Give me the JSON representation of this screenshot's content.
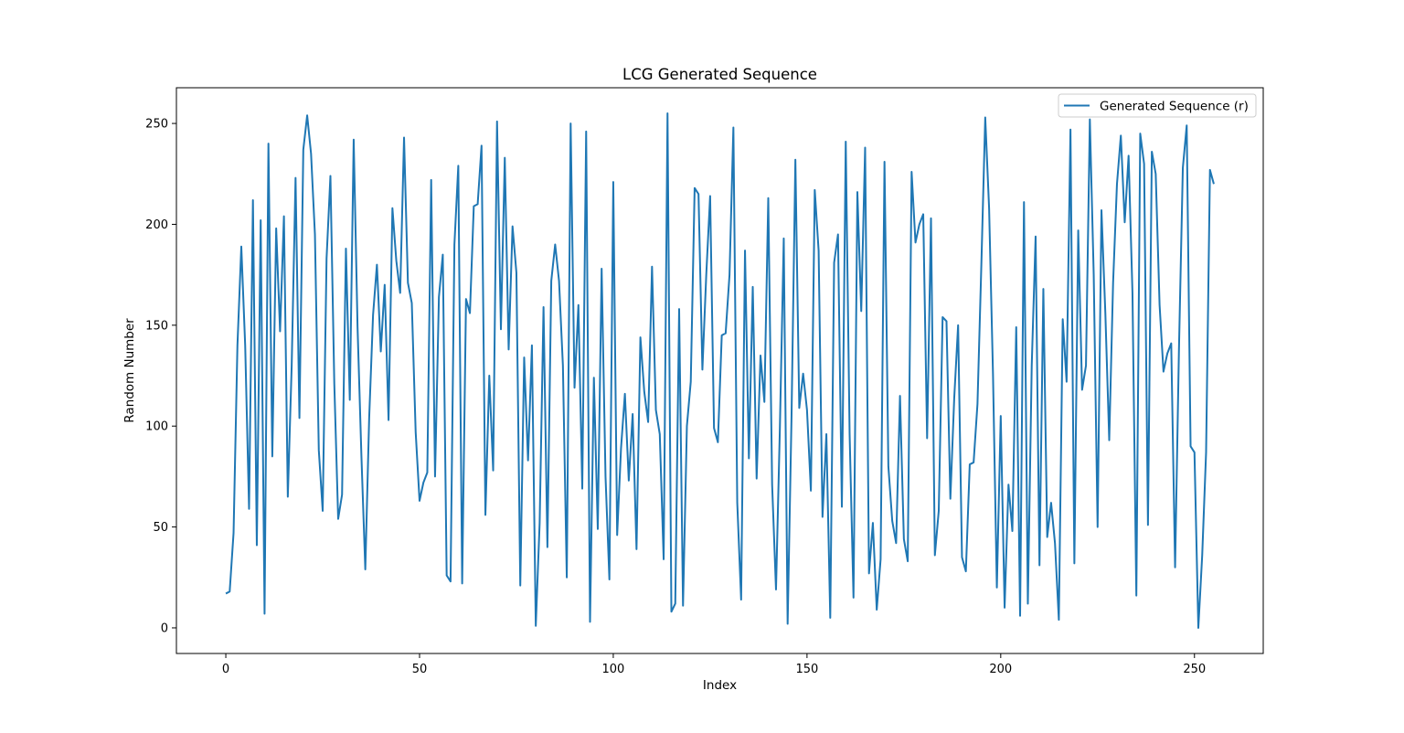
{
  "chart_data": {
    "type": "line",
    "title": "LCG Generated Sequence",
    "xlabel": "Index",
    "ylabel": "Random Number",
    "xlim": [
      -12.75,
      267.75
    ],
    "ylim": [
      -12.7,
      267.7
    ],
    "xticks": [
      0,
      50,
      100,
      150,
      200,
      250
    ],
    "yticks": [
      0,
      50,
      100,
      150,
      200,
      250
    ],
    "grid": false,
    "legend_position": "top-right",
    "line_color": "#1f77b4",
    "series": [
      {
        "name": "Generated Sequence (r)",
        "x_start": 0,
        "x_step": 1,
        "values": [
          17,
          18,
          47,
          140,
          189,
          140,
          59,
          212,
          41,
          202,
          7,
          240,
          85,
          198,
          147,
          204,
          65,
          130,
          223,
          104,
          237,
          254,
          235,
          195,
          88,
          58,
          183,
          224,
          121,
          54,
          66,
          188,
          113,
          242,
          149,
          85,
          29,
          104,
          155,
          180,
          137,
          170,
          103,
          208,
          182,
          166,
          243,
          171,
          161,
          97,
          63,
          72,
          77,
          222,
          75,
          164,
          185,
          26,
          23,
          190,
          229,
          22,
          163,
          156,
          209,
          210,
          239,
          56,
          125,
          78,
          251,
          148,
          233,
          138,
          199,
          176,
          21,
          134,
          83,
          140,
          1,
          52,
          159,
          40,
          172,
          190,
          172,
          130,
          25,
          250,
          119,
          160,
          69,
          246,
          3,
          124,
          49,
          178,
          75,
          24,
          221,
          46,
          89,
          116,
          73,
          106,
          39,
          144,
          117,
          102,
          179,
          108,
          96,
          34,
          255,
          8,
          12,
          158,
          11,
          100,
          122,
          218,
          215,
          128,
          175,
          214,
          99,
          92,
          145,
          146,
          175,
          248,
          62,
          14,
          187,
          84,
          169,
          74,
          135,
          112,
          213,
          71,
          19,
          99,
          193,
          2,
          104,
          232,
          109,
          126,
          108,
          68,
          217,
          187,
          55,
          96,
          5,
          181,
          195,
          60,
          241,
          96,
          15,
          216,
          157,
          238,
          27,
          52,
          9,
          34,
          231,
          80,
          53,
          42,
          115,
          44,
          33,
          226,
          191,
          200,
          205,
          94,
          203,
          36,
          58,
          154,
          152,
          64,
          114,
          150,
          35,
          28,
          81,
          82,
          111,
          180,
          253,
          208,
          126,
          20,
          105,
          10,
          71,
          48,
          149,
          6,
          211,
          12,
          130,
          194,
          31,
          168,
          45,
          62,
          42,
          4,
          153,
          122,
          247,
          32,
          197,
          118,
          130,
          252,
          175,
          50,
          207,
          156,
          93,
          171,
          220,
          244,
          201,
          234,
          166,
          16,
          245,
          230,
          51,
          236,
          225,
          160,
          127,
          136,
          141,
          30,
          138,
          228,
          249,
          90,
          87,
          0,
          36,
          87,
          227,
          220
        ]
      }
    ]
  }
}
